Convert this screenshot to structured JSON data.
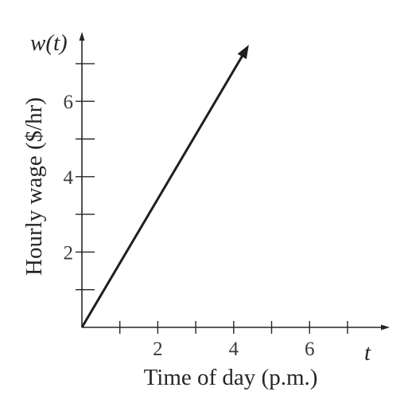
{
  "chart_data": {
    "type": "line",
    "ylabel_function": "w(t)",
    "xlabel_variable": "t",
    "xlabel": "Time of day (p.m.)",
    "ylabel": "Hourly wage ($/hr)",
    "x_tick_labels": [
      "2",
      "4",
      "6"
    ],
    "y_tick_labels": [
      "2",
      "4",
      "6"
    ],
    "x_minor_ticks": [
      1,
      2,
      3,
      4,
      5,
      6,
      7
    ],
    "y_minor_ticks": [
      1,
      2,
      3,
      4,
      5,
      6,
      7
    ],
    "xlim": [
      0,
      8
    ],
    "ylim": [
      0,
      7.5
    ],
    "grid": false,
    "series": [
      {
        "x": [
          0,
          4.4
        ],
        "y": [
          0,
          7.5
        ],
        "end_arrow": true
      }
    ]
  }
}
